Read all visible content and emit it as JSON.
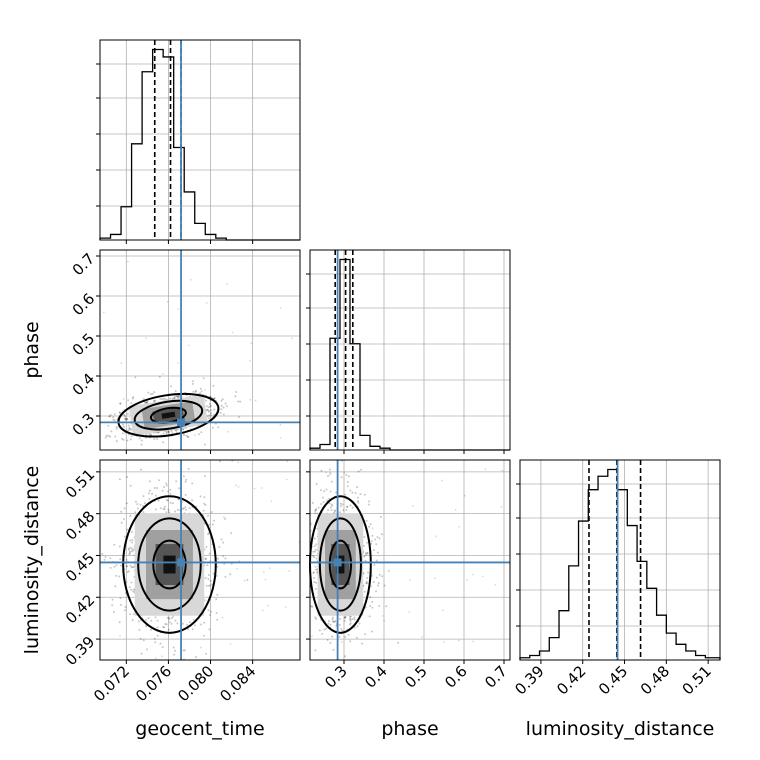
{
  "chart_data": {
    "type": "corner",
    "parameters": [
      "geocent_time",
      "phase",
      "luminosity_distance"
    ],
    "axis_labels": {
      "x": [
        "geocent_time",
        "phase",
        "luminosity_distance"
      ],
      "y": [
        "",
        "phase",
        "luminosity_distance"
      ]
    },
    "ranges": {
      "geocent_time": [
        0.0695,
        0.0885
      ],
      "phase": [
        0.215,
        0.715
      ],
      "luminosity_distance": [
        0.375,
        0.5185
      ]
    },
    "ticks": {
      "geocent_time": [
        "0.072",
        "0.076",
        "0.080",
        "0.084"
      ],
      "phase": [
        "0.3",
        "0.4",
        "0.5",
        "0.6",
        "0.7"
      ],
      "luminosity_distance": [
        "0.39",
        "0.42",
        "0.45",
        "0.48",
        "0.51"
      ]
    },
    "truths": {
      "geocent_time": 0.0772,
      "phase": 0.284,
      "luminosity_distance": 0.445
    },
    "quantiles": {
      "geocent_time": [
        0.0747,
        0.0762,
        0.0772
      ],
      "phase": [
        0.278,
        0.304,
        0.322
      ],
      "luminosity_distance": [
        0.4245,
        0.4445,
        0.4615
      ]
    },
    "histograms": {
      "geocent_time": {
        "edges": [
          0.0695,
          0.0705,
          0.0715,
          0.0725,
          0.0735,
          0.0745,
          0.0755,
          0.0765,
          0.0775,
          0.0785,
          0.0795,
          0.0805,
          0.0815,
          0.0825,
          0.0835,
          0.0845,
          0.0855,
          0.0865,
          0.0875,
          0.0885
        ],
        "counts": [
          1,
          3,
          18,
          52,
          91,
          103,
          99,
          50,
          26,
          9,
          3,
          1,
          0,
          0,
          0,
          0,
          0,
          0,
          0
        ]
      },
      "phase": {
        "edges": [
          0.215,
          0.24,
          0.265,
          0.29,
          0.315,
          0.34,
          0.365,
          0.39,
          0.415,
          0.44,
          0.465,
          0.49,
          0.515,
          0.54,
          0.565,
          0.59,
          0.615,
          0.64,
          0.665,
          0.69,
          0.715
        ],
        "counts": [
          1,
          3,
          61,
          104,
          58,
          8,
          2,
          1,
          0,
          0,
          0,
          0,
          0,
          0,
          0,
          0,
          0,
          0,
          0,
          0
        ]
      },
      "luminosity_distance": {
        "edges": [
          0.375,
          0.382,
          0.389,
          0.396,
          0.403,
          0.41,
          0.417,
          0.424,
          0.431,
          0.438,
          0.445,
          0.452,
          0.459,
          0.466,
          0.473,
          0.48,
          0.487,
          0.494,
          0.501,
          0.508,
          0.5185
        ],
        "counts": [
          1,
          2,
          4,
          10,
          22,
          42,
          62,
          76,
          82,
          85,
          76,
          60,
          44,
          32,
          20,
          12,
          7,
          4,
          2,
          1
        ]
      }
    },
    "contours": {
      "phase_vs_geocent_time": {
        "center": [
          0.076,
          0.302
        ],
        "radii": [
          0.0024,
          0.025
        ],
        "angle": 0.45
      },
      "luminosity_distance_vs_geocent_time": {
        "center": [
          0.0761,
          0.4435
        ],
        "radii": [
          0.0022,
          0.0245
        ],
        "angle": 0
      },
      "luminosity_distance_vs_phase": {
        "center": [
          0.291,
          0.4435
        ],
        "radii": [
          0.038,
          0.0245
        ],
        "angle": 0
      }
    },
    "truth_color": "#4682b4",
    "grid": true,
    "contour_levels": [
      0.39,
      0.86,
      0.99
    ]
  }
}
